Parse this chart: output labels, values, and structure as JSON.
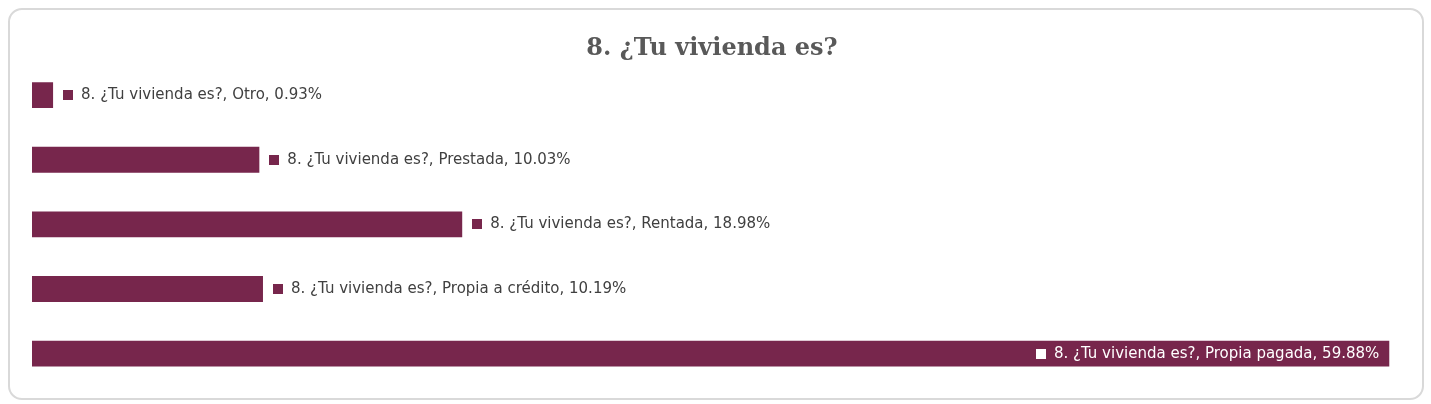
{
  "chart_data": {
    "type": "bar",
    "orientation": "horizontal",
    "title": "8. ¿Tu vivienda es?",
    "categories": [
      null,
      null,
      null,
      null,
      null
    ],
    "values": [
      0.93,
      10.03,
      18.98,
      10.19,
      59.88
    ],
    "value_labels": [
      "8. ¿Tu vivienda es?, Otro, 0.93%",
      "8. ¿Tu vivienda es?, Prestada, 10.03%",
      "8. ¿Tu vivienda es?, Rentada, 18.98%",
      "8. ¿Tu vivienda es?, Propia a crédito, 10.19%",
      "8. ¿Tu vivienda es?, Propia pagada, 59.88%"
    ],
    "color": "#77264c",
    "grid": false,
    "legend": false
  }
}
